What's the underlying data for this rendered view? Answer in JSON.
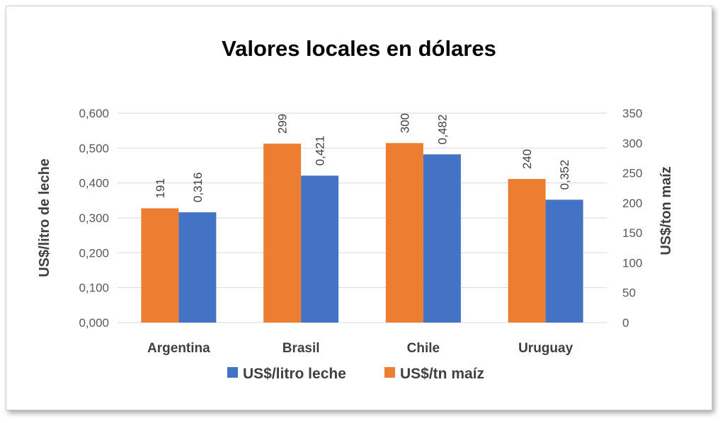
{
  "chart_data": {
    "type": "bar",
    "title": "Valores locales en dólares",
    "categories": [
      "Argentina",
      "Brasil",
      "Chile",
      "Uruguay"
    ],
    "series": [
      {
        "name": "US$/tn maíz",
        "axis": "right",
        "color": "#ed7d31",
        "values": [
          191,
          299,
          300,
          240
        ],
        "labels": [
          "191",
          "299",
          "300",
          "240"
        ]
      },
      {
        "name": "US$/litro leche",
        "axis": "left",
        "color": "#4472c4",
        "values": [
          0.316,
          0.421,
          0.482,
          0.352
        ],
        "labels": [
          "0,316",
          "0,421",
          "0,482",
          "0,352"
        ]
      }
    ],
    "y_left": {
      "label": "US$/litro de leche",
      "lim": [
        0,
        0.6
      ],
      "ticks": [
        "0,000",
        "0,100",
        "0,200",
        "0,300",
        "0,400",
        "0,500",
        "0,600"
      ]
    },
    "y_right": {
      "label": "US$/ton maíz",
      "lim": [
        0,
        350
      ],
      "ticks": [
        "0",
        "50",
        "100",
        "150",
        "200",
        "250",
        "300",
        "350"
      ]
    },
    "legend": {
      "position": "bottom",
      "order": [
        "US$/litro leche",
        "US$/tn maíz"
      ]
    },
    "grid": true,
    "gridline_color": "#d9d9d9"
  }
}
